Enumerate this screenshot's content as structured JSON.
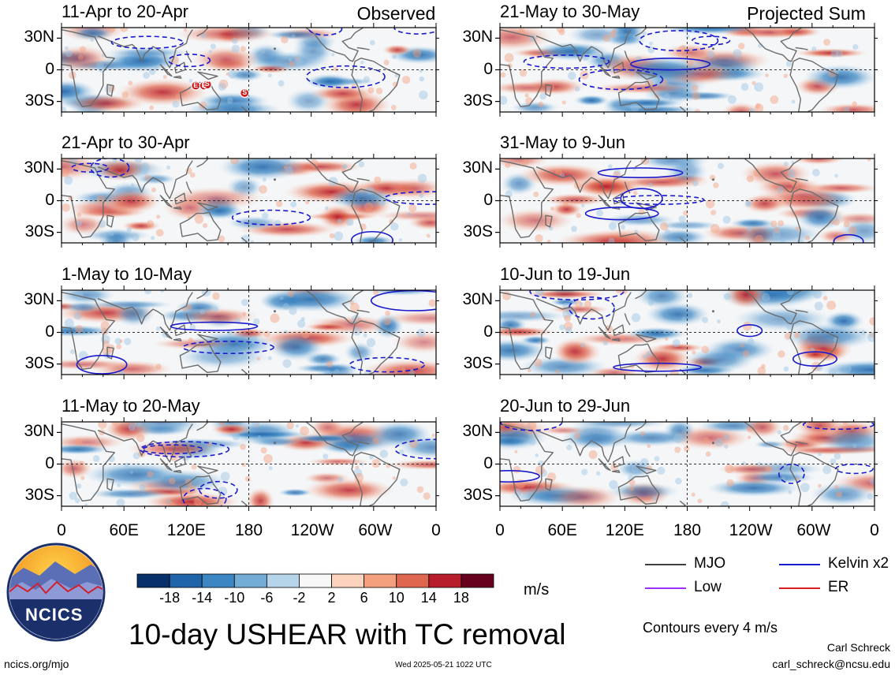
{
  "columns": [
    {
      "label": "Observed"
    },
    {
      "label": "Projected Sum"
    }
  ],
  "panels": [
    {
      "period": "11-Apr to 20-Apr",
      "column": 0,
      "row": 0,
      "tc_markers": [
        "E",
        "E",
        "S",
        "S"
      ]
    },
    {
      "period": "21-Apr to 30-Apr",
      "column": 0,
      "row": 1
    },
    {
      "period": "1-May to 10-May",
      "column": 0,
      "row": 2
    },
    {
      "period": "11-May to 20-May",
      "column": 0,
      "row": 3
    },
    {
      "period": "21-May to 30-May",
      "column": 1,
      "row": 0
    },
    {
      "period": "31-May to 9-Jun",
      "column": 1,
      "row": 1
    },
    {
      "period": "10-Jun to 19-Jun",
      "column": 1,
      "row": 2
    },
    {
      "period": "20-Jun to 29-Jun",
      "column": 1,
      "row": 3
    }
  ],
  "lat_labels": [
    "30N",
    "0",
    "30S"
  ],
  "lon_labels": [
    "0",
    "60E",
    "120E",
    "180",
    "120W",
    "60W",
    "0"
  ],
  "colorbar": {
    "ticks": [
      "-18",
      "-14",
      "-10",
      "-6",
      "-2",
      "2",
      "6",
      "10",
      "14",
      "18"
    ],
    "colors": [
      "#08306b",
      "#1f63a8",
      "#3b86c3",
      "#73add6",
      "#b6d5ea",
      "#f7f7f7",
      "#fcd3bc",
      "#f4a07f",
      "#df6750",
      "#b71d2b",
      "#67001f"
    ],
    "units": "m/s"
  },
  "legend": [
    {
      "label": "MJO",
      "color": "#000000"
    },
    {
      "label": "Kelvin x2",
      "color": "#1a1acc"
    },
    {
      "label": "Low",
      "color": "#9b30ff"
    },
    {
      "label": "ER",
      "color": "#d62020"
    }
  ],
  "contour_note": "Contours every 4 m/s",
  "logo_text": "NCICS",
  "main_title": "10-day USHEAR with TC removal",
  "footer": {
    "website": "ncics.org/mjo",
    "timestamp": "Wed 2025-05-21 1022 UTC",
    "author": "Carl Schreck",
    "email": "carl_schreck@ncsu.edu"
  }
}
